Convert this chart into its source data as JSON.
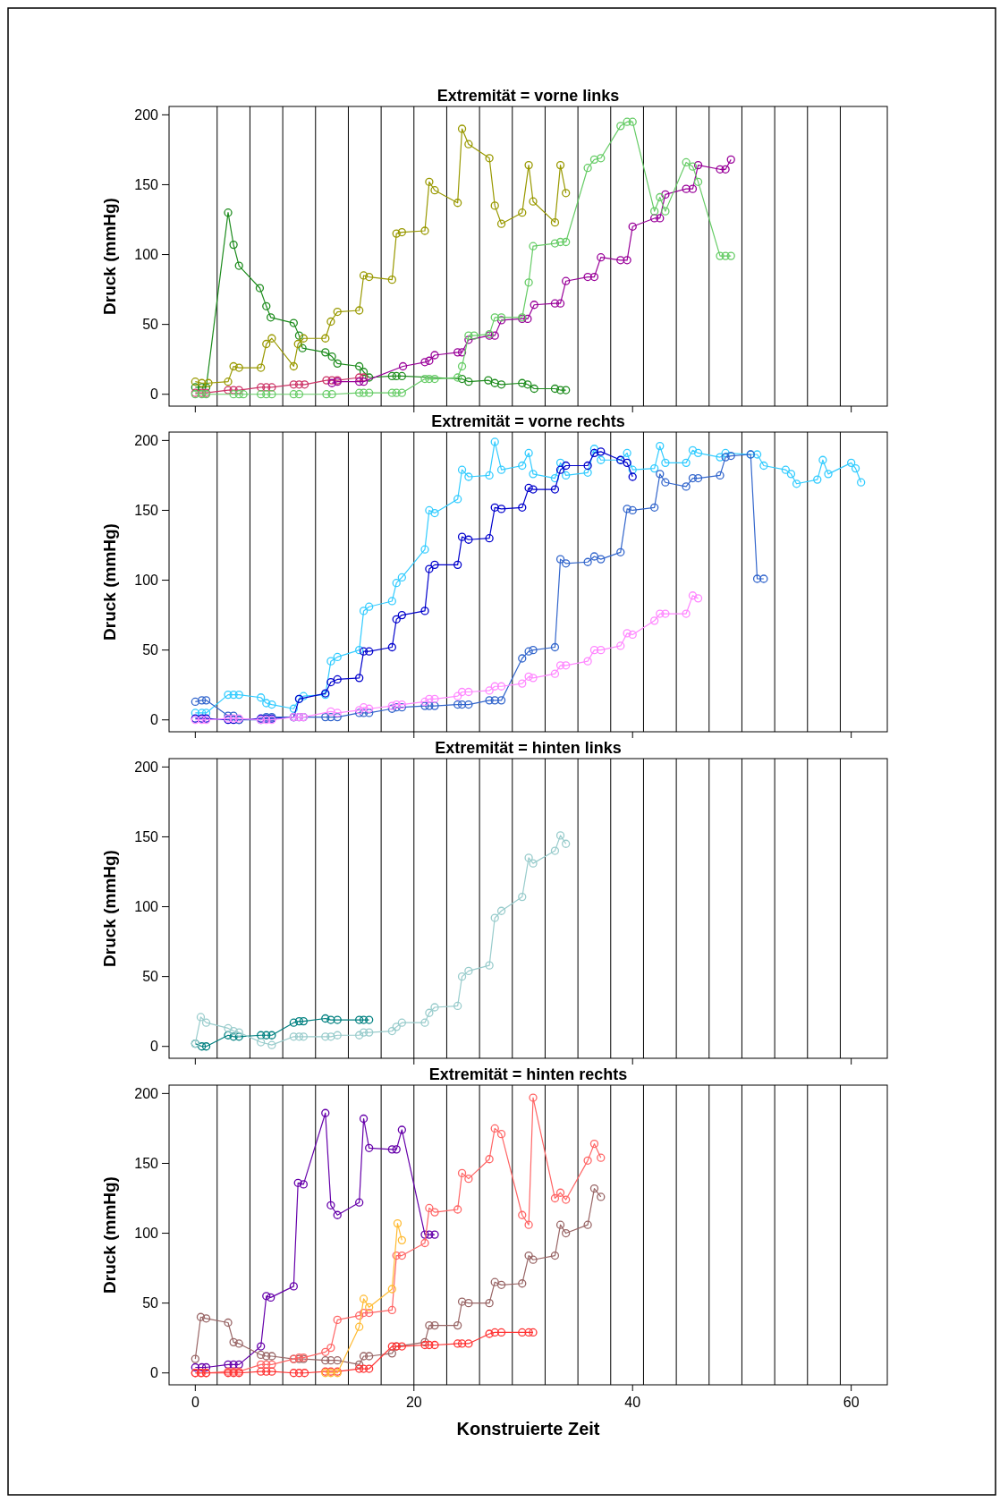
{
  "chart_data": [
    {
      "type": "line",
      "title": "Extremität = vorne links",
      "ylabel": "Druck (mmHg)",
      "xlim": [
        -2.4,
        63.3
      ],
      "ylim": [
        -8.5,
        206
      ],
      "xticks": [
        0,
        20,
        40,
        60
      ],
      "yticks": [
        0,
        50,
        100,
        150,
        200
      ],
      "tick_labels": "y",
      "marker": "circle",
      "line_style": "solid",
      "grid": false,
      "ref_lines": [
        {
          "axis": "x",
          "value": 2,
          "color": "#000000"
        },
        {
          "axis": "x",
          "value": 5,
          "color": "#000000"
        },
        {
          "axis": "x",
          "value": 8,
          "color": "#000000"
        },
        {
          "axis": "x",
          "value": 11,
          "color": "#000000"
        },
        {
          "axis": "x",
          "value": 14,
          "color": "#000000"
        },
        {
          "axis": "x",
          "value": 17,
          "color": "#000000"
        },
        {
          "axis": "x",
          "value": 20,
          "color": "#000000"
        },
        {
          "axis": "x",
          "value": 23,
          "color": "#000000"
        },
        {
          "axis": "x",
          "value": 26,
          "color": "#000000"
        },
        {
          "axis": "x",
          "value": 29,
          "color": "#000000"
        },
        {
          "axis": "x",
          "value": 32,
          "color": "#000000"
        },
        {
          "axis": "x",
          "value": 35,
          "color": "#000000"
        },
        {
          "axis": "x",
          "value": 38,
          "color": "#000000"
        },
        {
          "axis": "x",
          "value": 41,
          "color": "#000000"
        },
        {
          "axis": "x",
          "value": 44,
          "color": "#000000"
        },
        {
          "axis": "x",
          "value": 47,
          "color": "#000000"
        },
        {
          "axis": "x",
          "value": 50,
          "color": "#000000"
        },
        {
          "axis": "x",
          "value": 53,
          "color": "#000000"
        },
        {
          "axis": "x",
          "value": 56,
          "color": "#000000"
        },
        {
          "axis": "x",
          "value": 59,
          "color": "#000000"
        }
      ],
      "series": [
        {
          "color": "#1e8c1e",
          "x": [
            0,
            0.6,
            1,
            3,
            3.5,
            4,
            5.9,
            6.5,
            6.9,
            9,
            9.5,
            9.8,
            11.9,
            12.5,
            13,
            15,
            15.4,
            15.9,
            18,
            18.4,
            18.9,
            24.4,
            25,
            26.8,
            27.4,
            28,
            29.9,
            30.4,
            31,
            32.9,
            33.4,
            33.9
          ],
          "values": [
            5,
            5,
            5,
            130,
            107,
            92,
            76,
            63,
            55,
            51,
            42,
            33,
            30,
            27,
            22,
            20,
            16,
            12,
            13,
            13,
            13,
            11,
            9,
            10,
            8,
            7,
            8,
            7,
            4,
            4,
            3,
            3
          ]
        },
        {
          "color": "#999900",
          "x": [
            0,
            0.6,
            1.2,
            3,
            3.5,
            4,
            6,
            6.5,
            7,
            9,
            9.4,
            9.9,
            11.9,
            12.4,
            13,
            15,
            15.4,
            15.9,
            18,
            18.4,
            18.9,
            21,
            21.4,
            21.9,
            24,
            24.4,
            25,
            26.9,
            27.4,
            28,
            29.9,
            30.5,
            30.9,
            32.9,
            33.4,
            33.9
          ],
          "values": [
            9,
            8,
            8,
            9,
            20,
            19,
            19,
            36,
            40,
            20,
            36,
            40,
            40,
            52,
            59,
            60,
            85,
            84,
            82,
            115,
            116,
            117,
            152,
            146,
            137,
            190,
            179,
            169,
            135,
            122,
            130,
            164,
            138,
            123,
            164,
            144
          ]
        },
        {
          "color": "#cc3366",
          "x": [
            0,
            0.6,
            1,
            3,
            3.5,
            4,
            6,
            6.5,
            7,
            9,
            9.5,
            10,
            12,
            12.5,
            13,
            15,
            15.4
          ],
          "values": [
            1,
            1,
            1,
            3,
            3,
            3,
            5,
            5,
            5,
            7,
            7,
            7,
            10,
            10,
            10,
            12,
            12
          ]
        },
        {
          "color": "#990099",
          "x": [
            12.5,
            13,
            15,
            15.4,
            19,
            21,
            21.4,
            21.9,
            24,
            24.4,
            25,
            26.9,
            27.4,
            28,
            29.9,
            30.4,
            31,
            32.9,
            33.4,
            33.9,
            35.9,
            36.5,
            37.1,
            38.9,
            39.5,
            40,
            42,
            42.5,
            43,
            44.9,
            45.5,
            46,
            48,
            48.5,
            49
          ],
          "values": [
            8,
            9,
            9,
            9,
            20,
            23,
            24,
            28,
            30,
            30,
            39,
            42,
            42,
            53,
            54,
            54,
            64,
            65,
            65,
            81,
            84,
            84,
            98,
            96,
            96,
            120,
            126,
            126,
            143,
            147,
            147,
            164,
            161,
            161,
            168
          ]
        },
        {
          "color": "#66cc66",
          "x": [
            0,
            0.6,
            1,
            3.5,
            4,
            4.4,
            6,
            6.5,
            7,
            9,
            9.5,
            12,
            12.5,
            15,
            15.4,
            15.9,
            18,
            18.4,
            18.9,
            21,
            21.4,
            21.9,
            24,
            24.4,
            25,
            25.5,
            26.9,
            27.4,
            28,
            29.9,
            30.5,
            30.9,
            32.9,
            33.4,
            33.9,
            35.9,
            36.5,
            37.1,
            38.9,
            39.5,
            40,
            42,
            42.5,
            43,
            44.9,
            45.5,
            46,
            48,
            48.5,
            49
          ],
          "values": [
            0,
            0,
            0,
            0,
            0,
            0,
            0,
            0,
            0,
            0,
            0,
            0,
            0,
            1,
            1,
            1,
            1,
            1,
            1,
            11,
            11,
            11,
            12,
            20,
            42,
            42,
            43,
            55,
            55,
            55,
            80,
            106,
            108,
            109,
            109,
            162,
            168,
            169,
            192,
            195,
            195,
            131,
            141,
            131,
            166,
            163,
            152,
            99,
            99,
            99
          ]
        }
      ]
    },
    {
      "type": "line",
      "title": "Extremität = vorne rechts",
      "ylabel": "Druck (mmHg)",
      "xlim": [
        -2.4,
        63.3
      ],
      "ylim": [
        -8.5,
        206
      ],
      "xticks": [
        0,
        20,
        40,
        60
      ],
      "yticks": [
        0,
        50,
        100,
        150,
        200
      ],
      "tick_labels": "y",
      "marker": "circle",
      "line_style": "solid",
      "grid": false,
      "ref_lines": [
        {
          "axis": "x",
          "value": 2,
          "color": "#000000"
        },
        {
          "axis": "x",
          "value": 5,
          "color": "#000000"
        },
        {
          "axis": "x",
          "value": 8,
          "color": "#000000"
        },
        {
          "axis": "x",
          "value": 11,
          "color": "#000000"
        },
        {
          "axis": "x",
          "value": 14,
          "color": "#000000"
        },
        {
          "axis": "x",
          "value": 17,
          "color": "#000000"
        },
        {
          "axis": "x",
          "value": 20,
          "color": "#000000"
        },
        {
          "axis": "x",
          "value": 23,
          "color": "#000000"
        },
        {
          "axis": "x",
          "value": 26,
          "color": "#000000"
        },
        {
          "axis": "x",
          "value": 29,
          "color": "#000000"
        },
        {
          "axis": "x",
          "value": 32,
          "color": "#000000"
        },
        {
          "axis": "x",
          "value": 35,
          "color": "#000000"
        },
        {
          "axis": "x",
          "value": 38,
          "color": "#000000"
        },
        {
          "axis": "x",
          "value": 41,
          "color": "#000000"
        },
        {
          "axis": "x",
          "value": 44,
          "color": "#000000"
        },
        {
          "axis": "x",
          "value": 47,
          "color": "#000000"
        },
        {
          "axis": "x",
          "value": 50,
          "color": "#000000"
        },
        {
          "axis": "x",
          "value": 53,
          "color": "#000000"
        },
        {
          "axis": "x",
          "value": 56,
          "color": "#000000"
        },
        {
          "axis": "x",
          "value": 59,
          "color": "#000000"
        }
      ],
      "series": [
        {
          "color": "#33ccff",
          "x": [
            0,
            0.6,
            1,
            3,
            3.5,
            4,
            6,
            6.5,
            7,
            9,
            9.5,
            9.9,
            11.9,
            12.4,
            13,
            15,
            15.4,
            15.9,
            18,
            18.4,
            18.9,
            21,
            21.4,
            21.9,
            24,
            24.4,
            25,
            26.9,
            27.4,
            28,
            29.9,
            30.5,
            30.9,
            32.9,
            33.4,
            33.9,
            35.9,
            36.5,
            37.1,
            38.9,
            39.5,
            40,
            42,
            42.5,
            43,
            44.9,
            45.5,
            46,
            48,
            48.5,
            50.8,
            51.4,
            52,
            54,
            54.5,
            55,
            56.9,
            57.4,
            57.9,
            60,
            60.4,
            60.9
          ],
          "values": [
            5,
            5,
            5,
            18,
            18,
            18,
            16,
            12,
            11,
            8,
            15,
            17,
            18,
            42,
            45,
            50,
            78,
            81,
            85,
            98,
            102,
            122,
            150,
            148,
            158,
            179,
            174,
            175,
            199,
            179,
            182,
            191,
            176,
            173,
            184,
            175,
            177,
            194,
            186,
            186,
            191,
            179,
            180,
            196,
            184,
            184,
            193,
            191,
            188,
            191,
            190,
            190,
            182,
            179,
            176,
            169,
            172,
            186,
            176,
            184,
            180,
            170
          ]
        },
        {
          "color": "#0000cc",
          "x": [
            0,
            0.6,
            1,
            3,
            3.5,
            4,
            6,
            6.5,
            7,
            9,
            9.5,
            11.9,
            12.4,
            13,
            15,
            15.4,
            15.9,
            18,
            18.4,
            18.9,
            21,
            21.4,
            21.9,
            24,
            24.4,
            25,
            26.9,
            27.4,
            28,
            29.9,
            30.5,
            30.9,
            32.9,
            33.4,
            33.9,
            35.9,
            36.5,
            37.1,
            38.9,
            39.5,
            40
          ],
          "values": [
            1,
            1,
            1,
            0,
            0,
            0,
            1,
            1,
            1,
            2,
            15,
            19,
            27,
            29,
            30,
            49,
            49,
            52,
            72,
            75,
            78,
            108,
            111,
            111,
            131,
            129,
            130,
            152,
            151,
            152,
            166,
            165,
            165,
            179,
            182,
            182,
            191,
            192,
            186,
            184,
            174
          ]
        },
        {
          "color": "#3366cc",
          "x": [
            0,
            0.6,
            1,
            3,
            3.5,
            4,
            6,
            6.5,
            7,
            9,
            9.5,
            9.9,
            11.9,
            12.4,
            13,
            15,
            15.4,
            15.9,
            18,
            18.4,
            18.9,
            21,
            21.4,
            21.9,
            24,
            24.4,
            25,
            26.9,
            27.4,
            28,
            29.9,
            30.5,
            30.9,
            32.9,
            33.4,
            33.9,
            35.9,
            36.5,
            37.1,
            38.9,
            39.5,
            40,
            42,
            42.5,
            43,
            44.9,
            45.5,
            46,
            48,
            48.5,
            49,
            50.8,
            51.4,
            52
          ],
          "values": [
            13,
            14,
            14,
            3,
            3,
            0,
            0,
            2,
            2,
            2,
            2,
            2,
            2,
            2,
            2,
            5,
            5,
            5,
            8,
            9,
            9,
            10,
            10,
            10,
            11,
            11,
            11,
            14,
            14,
            14,
            44,
            49,
            50,
            52,
            115,
            112,
            113,
            117,
            115,
            120,
            151,
            150,
            152,
            176,
            170,
            167,
            173,
            173,
            175,
            188,
            189,
            190,
            101,
            101
          ]
        },
        {
          "color": "#ff88ff",
          "x": [
            0,
            0.6,
            1,
            3,
            3.5,
            4,
            6,
            6.5,
            7,
            9,
            9.5,
            9.9,
            12.4,
            13,
            15,
            15.4,
            15.9,
            18,
            18.4,
            18.9,
            21,
            21.4,
            21.9,
            24,
            24.4,
            25,
            26.9,
            27.4,
            28,
            29.9,
            30.5,
            30.9,
            32.9,
            33.4,
            33.9,
            35.9,
            36.5,
            37.1,
            38.9,
            39.5,
            40,
            42,
            42.5,
            43,
            44.9,
            45.5,
            46
          ],
          "values": [
            0,
            0,
            0,
            1,
            1,
            1,
            0,
            0,
            0,
            2,
            2,
            2,
            6,
            5,
            7,
            9,
            8,
            10,
            11,
            11,
            13,
            15,
            15,
            17,
            20,
            20,
            21,
            24,
            24,
            26,
            31,
            30,
            33,
            39,
            39,
            42,
            50,
            50,
            53,
            62,
            61,
            71,
            76,
            76,
            76,
            89,
            87
          ]
        }
      ]
    },
    {
      "type": "line",
      "title": "Extremität = hinten links",
      "ylabel": "Druck (mmHg)",
      "xlim": [
        -2.4,
        63.3
      ],
      "ylim": [
        -8.5,
        206
      ],
      "xticks": [
        0,
        20,
        40,
        60
      ],
      "yticks": [
        0,
        50,
        100,
        150,
        200
      ],
      "tick_labels": "y",
      "marker": "circle",
      "line_style": "solid",
      "grid": false,
      "ref_lines": [
        {
          "axis": "x",
          "value": 2,
          "color": "#000000"
        },
        {
          "axis": "x",
          "value": 5,
          "color": "#000000"
        },
        {
          "axis": "x",
          "value": 8,
          "color": "#000000"
        },
        {
          "axis": "x",
          "value": 11,
          "color": "#000000"
        },
        {
          "axis": "x",
          "value": 14,
          "color": "#000000"
        },
        {
          "axis": "x",
          "value": 17,
          "color": "#000000"
        },
        {
          "axis": "x",
          "value": 20,
          "color": "#000000"
        },
        {
          "axis": "x",
          "value": 23,
          "color": "#000000"
        },
        {
          "axis": "x",
          "value": 26,
          "color": "#000000"
        },
        {
          "axis": "x",
          "value": 29,
          "color": "#000000"
        },
        {
          "axis": "x",
          "value": 32,
          "color": "#000000"
        },
        {
          "axis": "x",
          "value": 35,
          "color": "#000000"
        },
        {
          "axis": "x",
          "value": 38,
          "color": "#000000"
        },
        {
          "axis": "x",
          "value": 41,
          "color": "#000000"
        },
        {
          "axis": "x",
          "value": 44,
          "color": "#000000"
        },
        {
          "axis": "x",
          "value": 47,
          "color": "#000000"
        },
        {
          "axis": "x",
          "value": 50,
          "color": "#000000"
        },
        {
          "axis": "x",
          "value": 53,
          "color": "#000000"
        },
        {
          "axis": "x",
          "value": 56,
          "color": "#000000"
        },
        {
          "axis": "x",
          "value": 59,
          "color": "#000000"
        }
      ],
      "series": [
        {
          "color": "#008080",
          "x": [
            0,
            0.6,
            1,
            3,
            3.5,
            4,
            6,
            6.5,
            7,
            9,
            9.5,
            9.9,
            11.9,
            12.4,
            13,
            15,
            15.4,
            15.9
          ],
          "values": [
            2,
            0,
            0,
            8,
            7,
            7,
            8,
            8,
            8,
            17,
            18,
            18,
            20,
            19,
            19,
            19,
            19,
            19
          ]
        },
        {
          "color": "#99cccc",
          "x": [
            0,
            0.5,
            1,
            3,
            3.5,
            4,
            6,
            7,
            9,
            9.5,
            9.9,
            11.9,
            12.4,
            13,
            15,
            15.4,
            15.9,
            18,
            18.4,
            18.9,
            21,
            21.4,
            21.9,
            24,
            24.4,
            25,
            26.9,
            27.4,
            28,
            29.9,
            30.5,
            30.9,
            32.9,
            33.4,
            33.9
          ],
          "values": [
            2,
            21,
            17,
            13,
            11,
            10,
            3,
            1,
            7,
            7,
            7,
            7,
            7,
            8,
            8,
            10,
            10,
            11,
            14,
            17,
            17,
            24,
            28,
            29,
            50,
            54,
            58,
            92,
            97,
            107,
            135,
            131,
            140,
            151,
            145
          ]
        }
      ]
    },
    {
      "type": "line",
      "title": "Extremität = hinten rechts",
      "xlabel": "Konstruierte Zeit",
      "ylabel": "Druck (mmHg)",
      "xlim": [
        -2.4,
        63.3
      ],
      "ylim": [
        -8.5,
        206
      ],
      "xticks": [
        0,
        20,
        40,
        60
      ],
      "yticks": [
        0,
        50,
        100,
        150,
        200
      ],
      "marker": "circle",
      "line_style": "solid",
      "grid": false,
      "ref_lines": [
        {
          "axis": "x",
          "value": 2,
          "color": "#000000"
        },
        {
          "axis": "x",
          "value": 5,
          "color": "#000000"
        },
        {
          "axis": "x",
          "value": 8,
          "color": "#000000"
        },
        {
          "axis": "x",
          "value": 11,
          "color": "#000000"
        },
        {
          "axis": "x",
          "value": 14,
          "color": "#000000"
        },
        {
          "axis": "x",
          "value": 17,
          "color": "#000000"
        },
        {
          "axis": "x",
          "value": 20,
          "color": "#000000"
        },
        {
          "axis": "x",
          "value": 23,
          "color": "#000000"
        },
        {
          "axis": "x",
          "value": 26,
          "color": "#000000"
        },
        {
          "axis": "x",
          "value": 29,
          "color": "#000000"
        },
        {
          "axis": "x",
          "value": 32,
          "color": "#000000"
        },
        {
          "axis": "x",
          "value": 35,
          "color": "#000000"
        },
        {
          "axis": "x",
          "value": 38,
          "color": "#000000"
        },
        {
          "axis": "x",
          "value": 41,
          "color": "#000000"
        },
        {
          "axis": "x",
          "value": 44,
          "color": "#000000"
        },
        {
          "axis": "x",
          "value": 47,
          "color": "#000000"
        },
        {
          "axis": "x",
          "value": 50,
          "color": "#000000"
        },
        {
          "axis": "x",
          "value": 53,
          "color": "#000000"
        },
        {
          "axis": "x",
          "value": 56,
          "color": "#000000"
        },
        {
          "axis": "x",
          "value": 59,
          "color": "#000000"
        }
      ],
      "series": [
        {
          "color": "#6600aa",
          "x": [
            0,
            0.6,
            1,
            3,
            3.5,
            4,
            6,
            6.5,
            6.9,
            9,
            9.4,
            9.9,
            11.9,
            12.4,
            13,
            15,
            15.4,
            15.9,
            18,
            18.4,
            18.9,
            21,
            21.4,
            21.9
          ],
          "values": [
            4,
            4,
            4,
            6,
            6,
            6,
            19,
            55,
            54,
            62,
            136,
            135,
            186,
            120,
            113,
            122,
            182,
            161,
            160,
            160,
            174,
            99,
            99,
            99
          ]
        },
        {
          "color": "#996666",
          "x": [
            0,
            0.5,
            1,
            3,
            3.5,
            4,
            6,
            6.5,
            7,
            9,
            9.5,
            9.9,
            11.9,
            12.4,
            13,
            15,
            15.4,
            15.9,
            18,
            18.4,
            21,
            21.4,
            21.9,
            24,
            24.4,
            25,
            26.9,
            27.4,
            28,
            29.9,
            30.5,
            30.9,
            32.9,
            33.4,
            33.9,
            35.9,
            36.5,
            37.1
          ],
          "values": [
            10,
            40,
            39,
            36,
            22,
            21,
            13,
            12,
            12,
            10,
            10,
            10,
            9,
            9,
            9,
            6,
            12,
            12,
            14,
            19,
            22,
            34,
            34,
            34,
            51,
            50,
            50,
            65,
            63,
            64,
            84,
            81,
            84,
            106,
            100,
            106,
            132,
            126
          ]
        },
        {
          "color": "#ff6666",
          "x": [
            0,
            0.6,
            1,
            3,
            3.5,
            4,
            6,
            6.5,
            7,
            9,
            9.5,
            9.9,
            11.9,
            12.4,
            13,
            15,
            15.4,
            15.9,
            18,
            18.4,
            18.9,
            21,
            21.4,
            21.9,
            24,
            24.4,
            25,
            26.9,
            27.4,
            28,
            29.9,
            30.5,
            30.9,
            32.9,
            33.4,
            33.9,
            35.9,
            36.5,
            37.1
          ],
          "values": [
            0,
            0,
            0,
            1,
            1,
            1,
            6,
            6,
            6,
            10,
            11,
            11,
            15,
            18,
            38,
            41,
            43,
            43,
            45,
            84,
            84,
            93,
            118,
            115,
            117,
            143,
            139,
            153,
            175,
            171,
            113,
            106,
            197,
            125,
            129,
            124,
            152,
            164,
            154
          ]
        },
        {
          "color": "#ff3333",
          "x": [
            0,
            0.5,
            1,
            3,
            3.5,
            4,
            6,
            6.5,
            7,
            9,
            9.5,
            10,
            11.9,
            12.4,
            13,
            15,
            15.4,
            15.9,
            18,
            18.4,
            18.9,
            21,
            21.4,
            21.9,
            24,
            24.4,
            25,
            26.9,
            27.4,
            28,
            29.9,
            30.5,
            30.9
          ],
          "values": [
            0,
            0,
            0,
            0,
            0,
            0,
            1,
            1,
            1,
            0,
            0,
            0,
            1,
            1,
            1,
            3,
            3,
            3,
            19,
            19,
            19,
            20,
            20,
            20,
            21,
            21,
            21,
            28,
            29,
            29,
            29,
            29,
            29
          ]
        },
        {
          "color": "#ffbb33",
          "x": [
            11.9,
            12.4,
            13,
            15,
            15.4,
            15.9,
            18,
            18.5,
            18.9
          ],
          "values": [
            0,
            0,
            0,
            33,
            53,
            47,
            60,
            107,
            95
          ]
        }
      ]
    }
  ]
}
